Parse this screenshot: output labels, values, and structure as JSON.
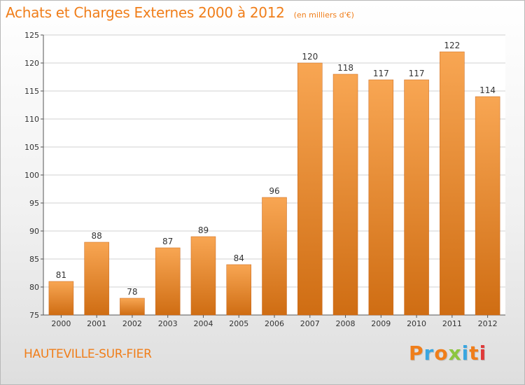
{
  "header": {
    "title": "Achats et Charges Externes 2000 à 2012",
    "subtitle": "(en milliers d'€)"
  },
  "footer": {
    "commune": "HAUTEVILLE-SUR-FIER",
    "brand": "Proxiti"
  },
  "colors": {
    "title": "#f07e1a",
    "bar_top": "#f8a653",
    "bar_bottom": "#cf6d13",
    "grid": "#d0d0d0",
    "brand_letters": [
      "#f07e1a",
      "#3aa6e0",
      "#f07e1a",
      "#8cc63f",
      "#3aa6e0",
      "#f07e1a",
      "#e03a3a"
    ]
  },
  "chart_data": {
    "type": "bar",
    "title": "Achats et Charges Externes 2000 à 2012",
    "subtitle": "(en milliers d'€)",
    "categories": [
      "2000",
      "2001",
      "2002",
      "2003",
      "2004",
      "2005",
      "2006",
      "2007",
      "2008",
      "2009",
      "2010",
      "2011",
      "2012"
    ],
    "values": [
      81,
      88,
      78,
      87,
      89,
      84,
      96,
      120,
      118,
      117,
      117,
      122,
      114
    ],
    "yticks": [
      75,
      80,
      85,
      90,
      95,
      100,
      105,
      110,
      115,
      120,
      125
    ],
    "ylim": [
      75,
      125
    ],
    "grid": true,
    "xlabel": "",
    "ylabel": ""
  }
}
